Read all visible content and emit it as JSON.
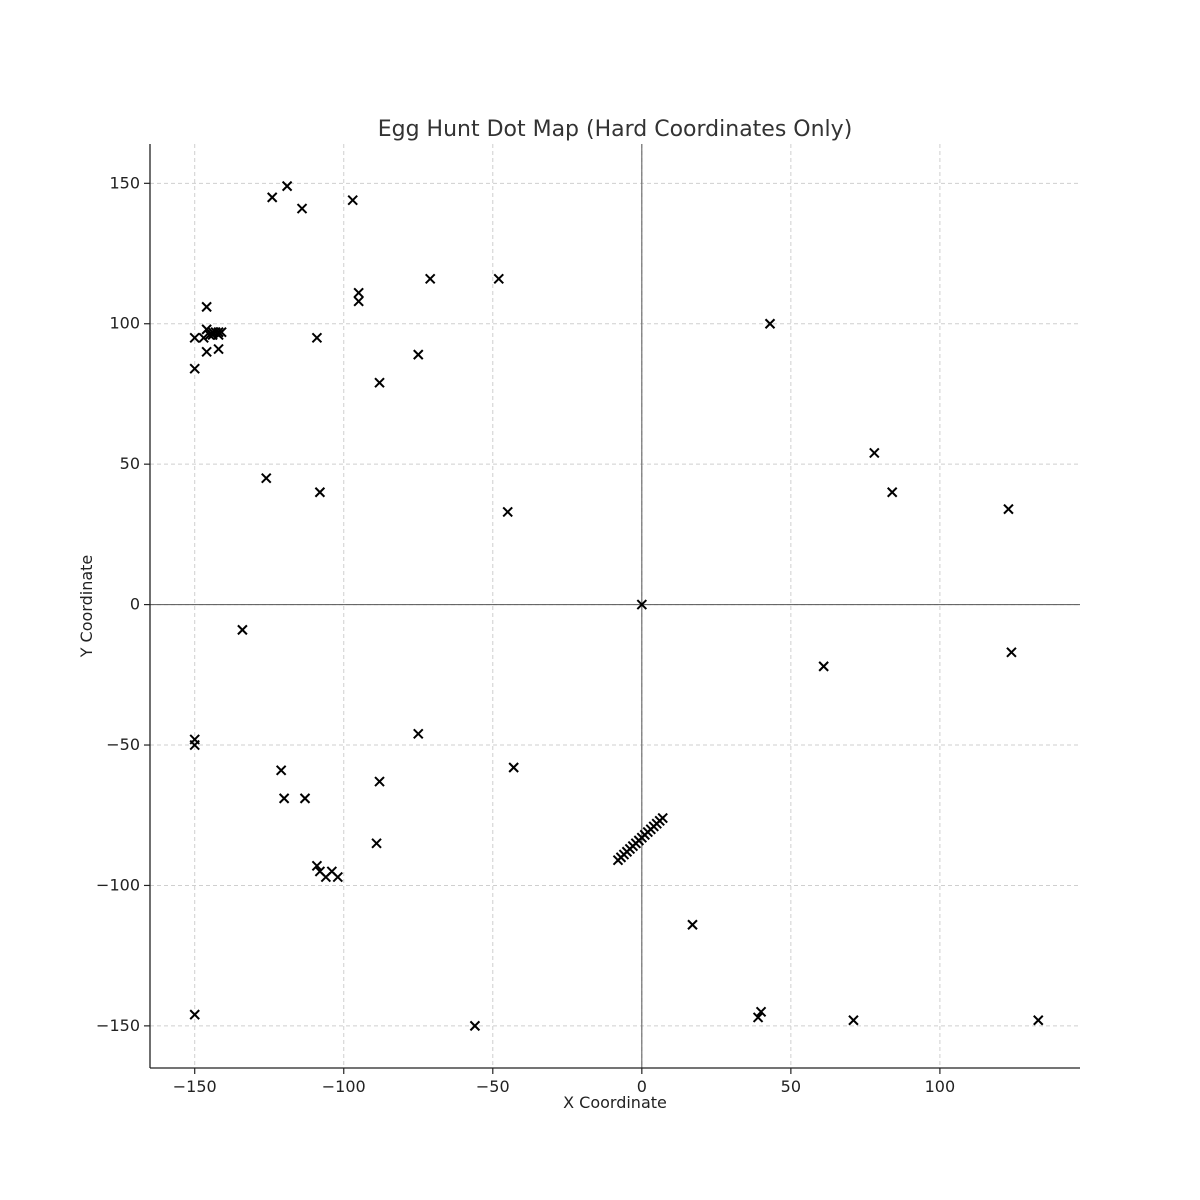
{
  "chart_data": {
    "type": "scatter",
    "title": "Egg Hunt Dot Map (Hard Coordinates Only)",
    "xlabel": "X Coordinate",
    "ylabel": "Y Coordinate",
    "xlim": [
      -165,
      147
    ],
    "ylim": [
      -165,
      164
    ],
    "xticks": [
      -150,
      -100,
      -50,
      0,
      50,
      100
    ],
    "yticks": [
      -150,
      -100,
      -50,
      0,
      50,
      100,
      150
    ],
    "xtick_labels": [
      "−150",
      "−100",
      "−50",
      "0",
      "50",
      "100"
    ],
    "ytick_labels": [
      "−150",
      "−100",
      "−50",
      "0",
      "50",
      "100",
      "150"
    ],
    "grid": true,
    "marker": "x",
    "marker_color": "#000000",
    "points": [
      [
        -124,
        145
      ],
      [
        -119,
        149
      ],
      [
        -114,
        141
      ],
      [
        -97,
        144
      ],
      [
        -95,
        111
      ],
      [
        -95,
        108
      ],
      [
        -71,
        116
      ],
      [
        -48,
        116
      ],
      [
        -146,
        106
      ],
      [
        -146,
        98
      ],
      [
        -145,
        96
      ],
      [
        -144,
        97
      ],
      [
        -143,
        97
      ],
      [
        -142,
        97
      ],
      [
        -141,
        97
      ],
      [
        -144,
        96
      ],
      [
        -142,
        96
      ],
      [
        -147,
        95
      ],
      [
        -150,
        95
      ],
      [
        -146,
        90
      ],
      [
        -142,
        91
      ],
      [
        -150,
        84
      ],
      [
        -109,
        95
      ],
      [
        -75,
        89
      ],
      [
        -88,
        79
      ],
      [
        -126,
        45
      ],
      [
        -108,
        40
      ],
      [
        -45,
        33
      ],
      [
        43,
        100
      ],
      [
        78,
        54
      ],
      [
        84,
        40
      ],
      [
        123,
        34
      ],
      [
        0,
        0
      ],
      [
        -134,
        -9
      ],
      [
        61,
        -22
      ],
      [
        124,
        -17
      ],
      [
        -150,
        -48
      ],
      [
        -150,
        -50
      ],
      [
        -75,
        -46
      ],
      [
        -43,
        -58
      ],
      [
        -121,
        -59
      ],
      [
        -120,
        -69
      ],
      [
        -113,
        -69
      ],
      [
        -88,
        -63
      ],
      [
        -89,
        -85
      ],
      [
        -109,
        -93
      ],
      [
        -108,
        -95
      ],
      [
        -106,
        -97
      ],
      [
        -104,
        -95
      ],
      [
        -102,
        -97
      ],
      [
        -8,
        -91
      ],
      [
        -7,
        -90
      ],
      [
        -6,
        -89
      ],
      [
        -5,
        -88
      ],
      [
        -4,
        -87
      ],
      [
        -3,
        -86
      ],
      [
        -2,
        -85
      ],
      [
        -1,
        -84
      ],
      [
        0,
        -83
      ],
      [
        1,
        -82
      ],
      [
        2,
        -81
      ],
      [
        3,
        -80
      ],
      [
        4,
        -79
      ],
      [
        5,
        -78
      ],
      [
        6,
        -77
      ],
      [
        7,
        -76
      ],
      [
        17,
        -114
      ],
      [
        -150,
        -146
      ],
      [
        -56,
        -150
      ],
      [
        39,
        -147
      ],
      [
        40,
        -145
      ],
      [
        71,
        -148
      ],
      [
        133,
        -148
      ]
    ]
  }
}
